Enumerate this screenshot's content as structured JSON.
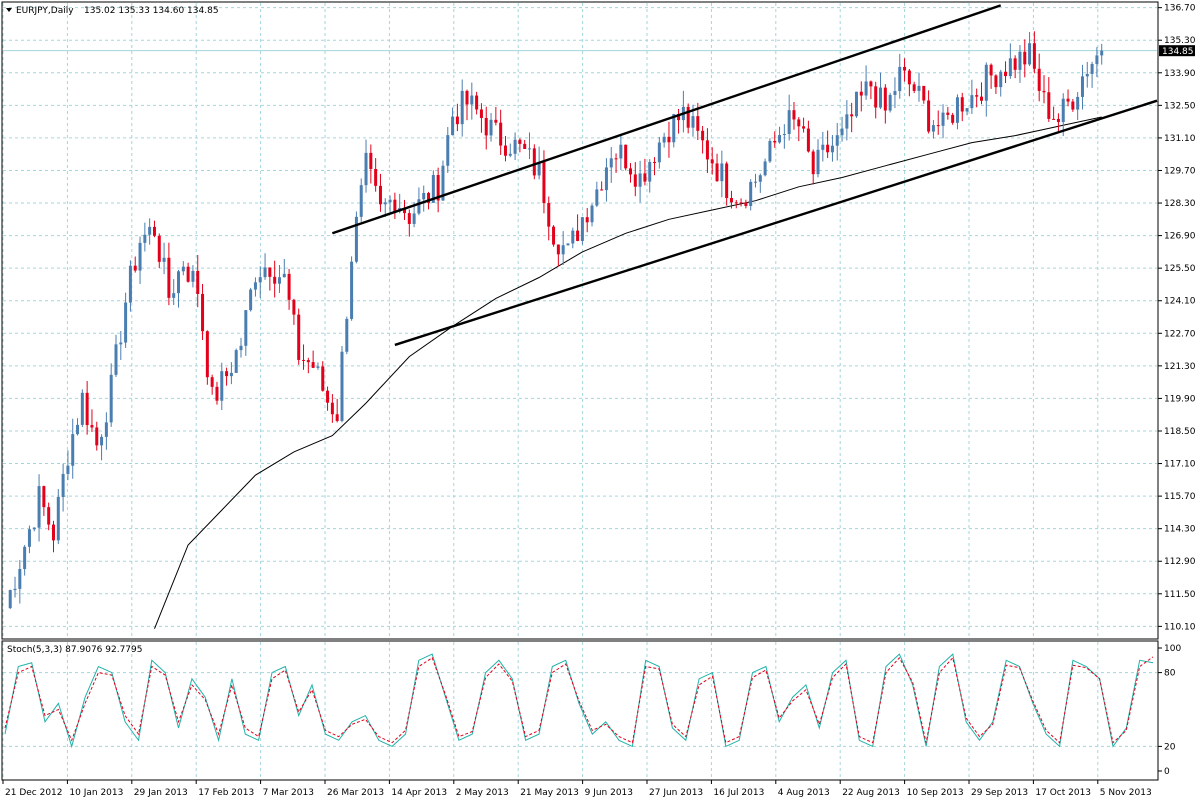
{
  "header": {
    "symbol": "EURJPY,Daily",
    "ohlc": "135.02 135.33 134.60 134.85"
  },
  "stoch": {
    "label": "Stoch(5,3,3) 87.9076 92.7795",
    "levels": [
      "100",
      "80",
      "20",
      "0"
    ]
  },
  "colors": {
    "up": "#4a7db0",
    "down": "#e2001a",
    "grid": "#a3d6dc",
    "ma": "#000000",
    "stoch_main": "#20b2aa",
    "stoch_signal": "#e2001a",
    "price_badge_bg": "#000000",
    "price_badge_fg": "#ffffff"
  },
  "chart_data": [
    {
      "type": "candlestick",
      "title": "EURJPY,Daily",
      "current_price": "134.85",
      "ylim": [
        109.6,
        136.9
      ],
      "y_ticks": [
        "136.70",
        "135.30",
        "133.90",
        "132.50",
        "131.10",
        "129.70",
        "128.30",
        "126.90",
        "125.50",
        "124.10",
        "122.70",
        "121.30",
        "119.90",
        "118.50",
        "117.10",
        "115.70",
        "114.30",
        "112.90",
        "111.50",
        "110.10"
      ],
      "x_ticks": [
        "21 Dec 2012",
        "10 Jan 2013",
        "29 Jan 2013",
        "17 Feb 2013",
        "7 Mar 2013",
        "26 Mar 2013",
        "14 Apr 2013",
        "2 May 2013",
        "21 May 2013",
        "9 Jun 2013",
        "27 Jun 2013",
        "16 Jul 2013",
        "4 Aug 2013",
        "22 Aug 2013",
        "10 Sep 2013",
        "29 Sep 2013",
        "17 Oct 2013",
        "5 Nov 2013"
      ],
      "price_path": [
        [
          0,
          110.9
        ],
        [
          4,
          113.6
        ],
        [
          7,
          115.6
        ],
        [
          10,
          114.1
        ],
        [
          13,
          117.6
        ],
        [
          16,
          119.9
        ],
        [
          19,
          117.9
        ],
        [
          22,
          120.3
        ],
        [
          25,
          124.1
        ],
        [
          28,
          126.7
        ],
        [
          31,
          127.2
        ],
        [
          34,
          124.3
        ],
        [
          37,
          125.8
        ],
        [
          40,
          124.6
        ],
        [
          43,
          119.8
        ],
        [
          46,
          120.9
        ],
        [
          49,
          122.3
        ],
        [
          52,
          125.4
        ],
        [
          55,
          125.7
        ],
        [
          58,
          125.0
        ],
        [
          61,
          121.8
        ],
        [
          64,
          121.3
        ],
        [
          67,
          119.8
        ],
        [
          69,
          119.3
        ],
        [
          72,
          126.1
        ],
        [
          75,
          129.8
        ],
        [
          78,
          127.9
        ],
        [
          81,
          128.6
        ],
        [
          84,
          127.8
        ],
        [
          87,
          128.4
        ],
        [
          90,
          129.1
        ],
        [
          93,
          132.1
        ],
        [
          96,
          132.6
        ],
        [
          99,
          132.0
        ],
        [
          102,
          131.2
        ],
        [
          105,
          130.9
        ],
        [
          108,
          130.4
        ],
        [
          111,
          129.6
        ],
        [
          114,
          127.1
        ],
        [
          117,
          126.1
        ],
        [
          120,
          127.7
        ],
        [
          123,
          128.9
        ],
        [
          126,
          130.6
        ],
        [
          129,
          130.3
        ],
        [
          132,
          129.4
        ],
        [
          135,
          130.6
        ],
        [
          138,
          131.6
        ],
        [
          141,
          132.1
        ],
        [
          144,
          131.1
        ],
        [
          147,
          130.2
        ],
        [
          150,
          129.1
        ],
        [
          153,
          128.6
        ],
        [
          156,
          129.3
        ],
        [
          159,
          130.4
        ],
        [
          162,
          131.8
        ],
        [
          165,
          131.6
        ],
        [
          168,
          129.6
        ],
        [
          171,
          130.6
        ],
        [
          174,
          131.1
        ],
        [
          177,
          132.4
        ],
        [
          180,
          133.4
        ],
        [
          183,
          132.2
        ],
        [
          186,
          133.8
        ],
        [
          189,
          133.2
        ],
        [
          192,
          132.0
        ],
        [
          195,
          131.5
        ],
        [
          198,
          132.6
        ],
        [
          201,
          132.9
        ],
        [
          204,
          133.6
        ],
        [
          207,
          134.1
        ],
        [
          210,
          134.4
        ],
        [
          213,
          134.6
        ],
        [
          216,
          132.6
        ],
        [
          219,
          131.9
        ],
        [
          222,
          132.9
        ],
        [
          225,
          134.2
        ],
        [
          228,
          134.85
        ]
      ],
      "moving_average": [
        [
          31,
          110.0
        ],
        [
          38,
          113.6
        ],
        [
          45,
          115.1
        ],
        [
          52,
          116.6
        ],
        [
          60,
          117.6
        ],
        [
          68,
          118.3
        ],
        [
          75,
          119.7
        ],
        [
          84,
          121.7
        ],
        [
          93,
          123.0
        ],
        [
          102,
          124.2
        ],
        [
          111,
          125.1
        ],
        [
          120,
          126.2
        ],
        [
          129,
          127.0
        ],
        [
          138,
          127.6
        ],
        [
          147,
          128.0
        ],
        [
          156,
          128.4
        ],
        [
          165,
          129.0
        ],
        [
          174,
          129.4
        ],
        [
          183,
          129.9
        ],
        [
          192,
          130.4
        ],
        [
          201,
          130.9
        ],
        [
          210,
          131.2
        ],
        [
          219,
          131.6
        ],
        [
          228,
          132.0
        ]
      ],
      "trendlines": [
        {
          "from": [
            68,
            127.0
          ],
          "to": [
            207,
            136.8
          ]
        },
        {
          "from": [
            81,
            122.2
          ],
          "to": [
            240,
            132.7
          ]
        }
      ]
    },
    {
      "type": "line",
      "title": "Stoch(5,3,3)",
      "ylim": [
        0,
        100
      ],
      "series": [
        {
          "name": "",
          "values": [
            30,
            85,
            88,
            40,
            55,
            20,
            60,
            85,
            80,
            40,
            25,
            90,
            80,
            35,
            75,
            60,
            25,
            75,
            30,
            25,
            80,
            85,
            45,
            70,
            30,
            25,
            40,
            45,
            25,
            20,
            30,
            90,
            95,
            60,
            25,
            30,
            80,
            90,
            75,
            25,
            30,
            85,
            90,
            55,
            30,
            40,
            25,
            20,
            90,
            85,
            35,
            25,
            75,
            80,
            20,
            25,
            80,
            85,
            40,
            60,
            70,
            35,
            80,
            90,
            25,
            20,
            85,
            95,
            70,
            20,
            85,
            95,
            40,
            25,
            40,
            90,
            85,
            55,
            30,
            20,
            90,
            85,
            75,
            20,
            35,
            90,
            88
          ]
        },
        {
          "name": "",
          "values": [
            35,
            80,
            85,
            45,
            50,
            25,
            55,
            80,
            78,
            45,
            30,
            85,
            78,
            40,
            70,
            58,
            30,
            70,
            35,
            28,
            75,
            82,
            48,
            66,
            33,
            28,
            38,
            42,
            28,
            23,
            33,
            85,
            92,
            62,
            28,
            32,
            76,
            87,
            73,
            28,
            33,
            80,
            87,
            57,
            33,
            38,
            28,
            23,
            85,
            83,
            38,
            28,
            70,
            77,
            23,
            28,
            76,
            82,
            43,
            57,
            66,
            38,
            76,
            87,
            28,
            23,
            80,
            92,
            72,
            23,
            80,
            92,
            43,
            28,
            38,
            86,
            84,
            57,
            33,
            23,
            86,
            84,
            75,
            23,
            33,
            85,
            92.78
          ]
        }
      ],
      "levels": [
        100,
        80,
        20,
        0
      ]
    }
  ]
}
